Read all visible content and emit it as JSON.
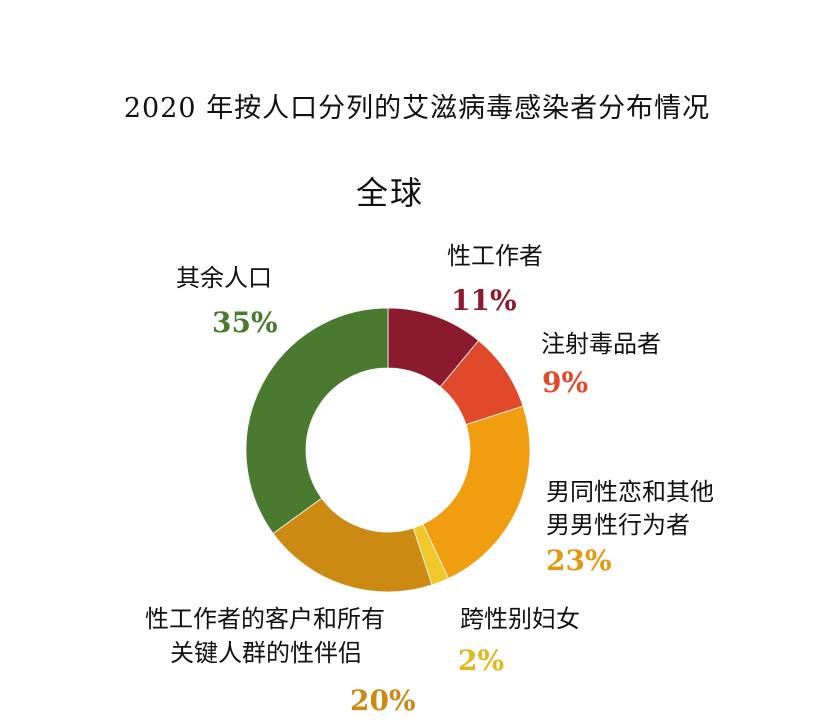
{
  "chart_data": {
    "type": "pie",
    "title": "2020 年按人口分列的艾滋病毒感染者分布情况",
    "subtitle": "全球",
    "donut": true,
    "slices": [
      {
        "label": "性工作者",
        "value": 11,
        "value_label": "11%",
        "color": "#8b1a2e"
      },
      {
        "label": "注射毒品者",
        "value": 9,
        "value_label": "9%",
        "color": "#e04a2a"
      },
      {
        "label": "男同性恋和其他男男性行为者",
        "label_lines": [
          "男同性恋和其他",
          "男男性行为者"
        ],
        "value": 23,
        "value_label": "23%",
        "color": "#f09e10"
      },
      {
        "label": "跨性别妇女",
        "value": 2,
        "value_label": "2%",
        "color": "#f2c72a"
      },
      {
        "label": "性工作者的客户和所有关键人群的性伴侣",
        "label_lines": [
          "性工作者的客户和所有",
          "关键人群的性伴侣"
        ],
        "value": 20,
        "value_label": "20%",
        "color": "#cc8a12"
      },
      {
        "label": "其余人口",
        "value": 35,
        "value_label": "35%",
        "color": "#4a7a30"
      }
    ]
  },
  "value_label_colors": {
    "sex_workers": "#8b1a2e",
    "drug_users": "#e04a2a",
    "msm": "#e09a14",
    "trans_women": "#e0b820",
    "clients": "#cc8a12",
    "rest": "#4a7a30"
  }
}
